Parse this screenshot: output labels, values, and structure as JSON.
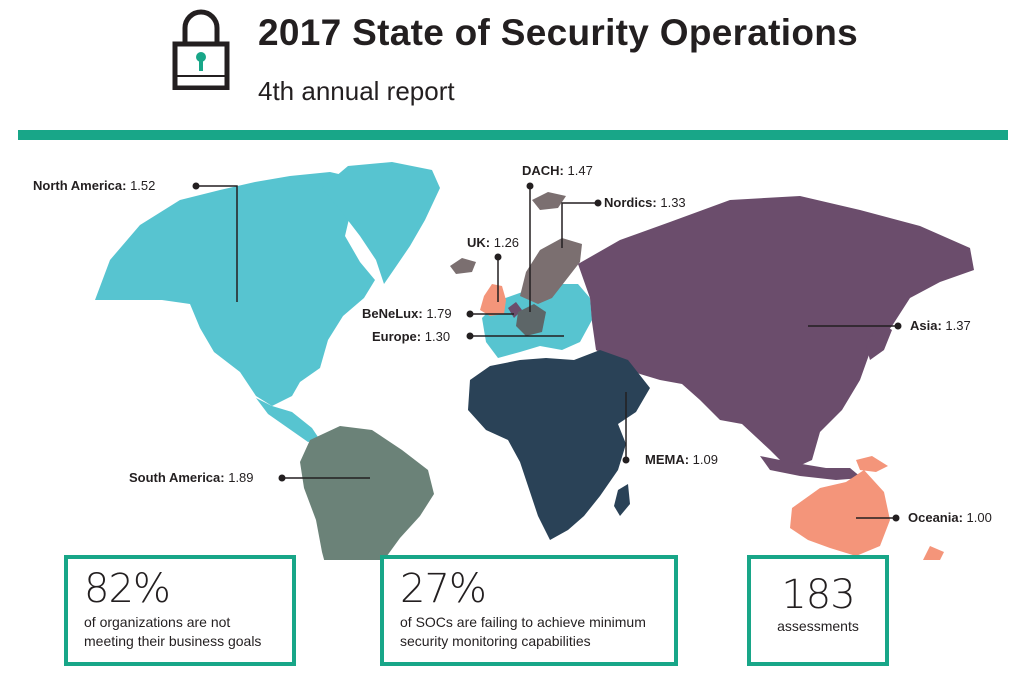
{
  "header": {
    "title": "2017 State of Security Operations",
    "subtitle": "4th annual report",
    "accent_color": "#18a688",
    "icon": "padlock-icon"
  },
  "map": {
    "colors": {
      "north_america": "#57c4d0",
      "europe": "#57c4d0",
      "south_america": "#6b8278",
      "mema": "#2a4257",
      "asia": "#6b4d6c",
      "oceania": "#f4957a",
      "uk": "#f4957a",
      "nordics": "#7b6f70",
      "benelux": "#6b4d6c"
    },
    "regions": [
      {
        "name": "North America:",
        "value": "1.52"
      },
      {
        "name": "DACH:",
        "value": "1.47"
      },
      {
        "name": "Nordics:",
        "value": "1.33"
      },
      {
        "name": "UK:",
        "value": "1.26"
      },
      {
        "name": "BeNeLux:",
        "value": "1.79"
      },
      {
        "name": "Europe:",
        "value": "1.30"
      },
      {
        "name": "Asia:",
        "value": "1.37"
      },
      {
        "name": "MEMA:",
        "value": "1.09"
      },
      {
        "name": "South America:",
        "value": "1.89"
      },
      {
        "name": "Oceania:",
        "value": "1.00"
      }
    ]
  },
  "stats": [
    {
      "number": "82%",
      "line1": "of organizations are not",
      "line2": "meeting their business goals"
    },
    {
      "number": "27%",
      "line1": "of SOCs are failing to achieve minimum",
      "line2": "security monitoring capabilities"
    },
    {
      "number": "183",
      "line1": "assessments",
      "line2": ""
    }
  ]
}
